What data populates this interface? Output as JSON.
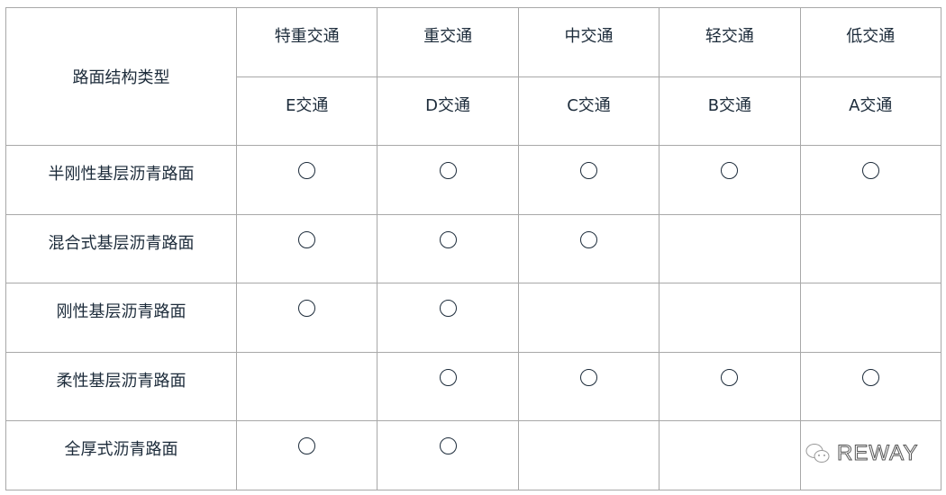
{
  "table": {
    "corner_header": "路面结构类型",
    "traffic_levels": [
      "特重交通",
      "重交通",
      "中交通",
      "轻交通",
      "低交通"
    ],
    "traffic_classes": [
      "E交通",
      "D交通",
      "C交通",
      "B交通",
      "A交通"
    ],
    "rows": [
      {
        "type": "半刚性基层沥青路面",
        "marks": [
          true,
          true,
          true,
          true,
          true
        ]
      },
      {
        "type": "混合式基层沥青路面",
        "marks": [
          true,
          true,
          true,
          false,
          false
        ]
      },
      {
        "type": "刚性基层沥青路面",
        "marks": [
          true,
          true,
          false,
          false,
          false
        ]
      },
      {
        "type": "柔性基层沥青路面",
        "marks": [
          false,
          true,
          true,
          true,
          true
        ]
      },
      {
        "type": "全厚式沥青路面",
        "marks": [
          true,
          true,
          false,
          false,
          false
        ]
      }
    ],
    "mark_symbol": "○"
  },
  "watermark": {
    "text": "REWAY",
    "icon": "wechat-icon"
  }
}
